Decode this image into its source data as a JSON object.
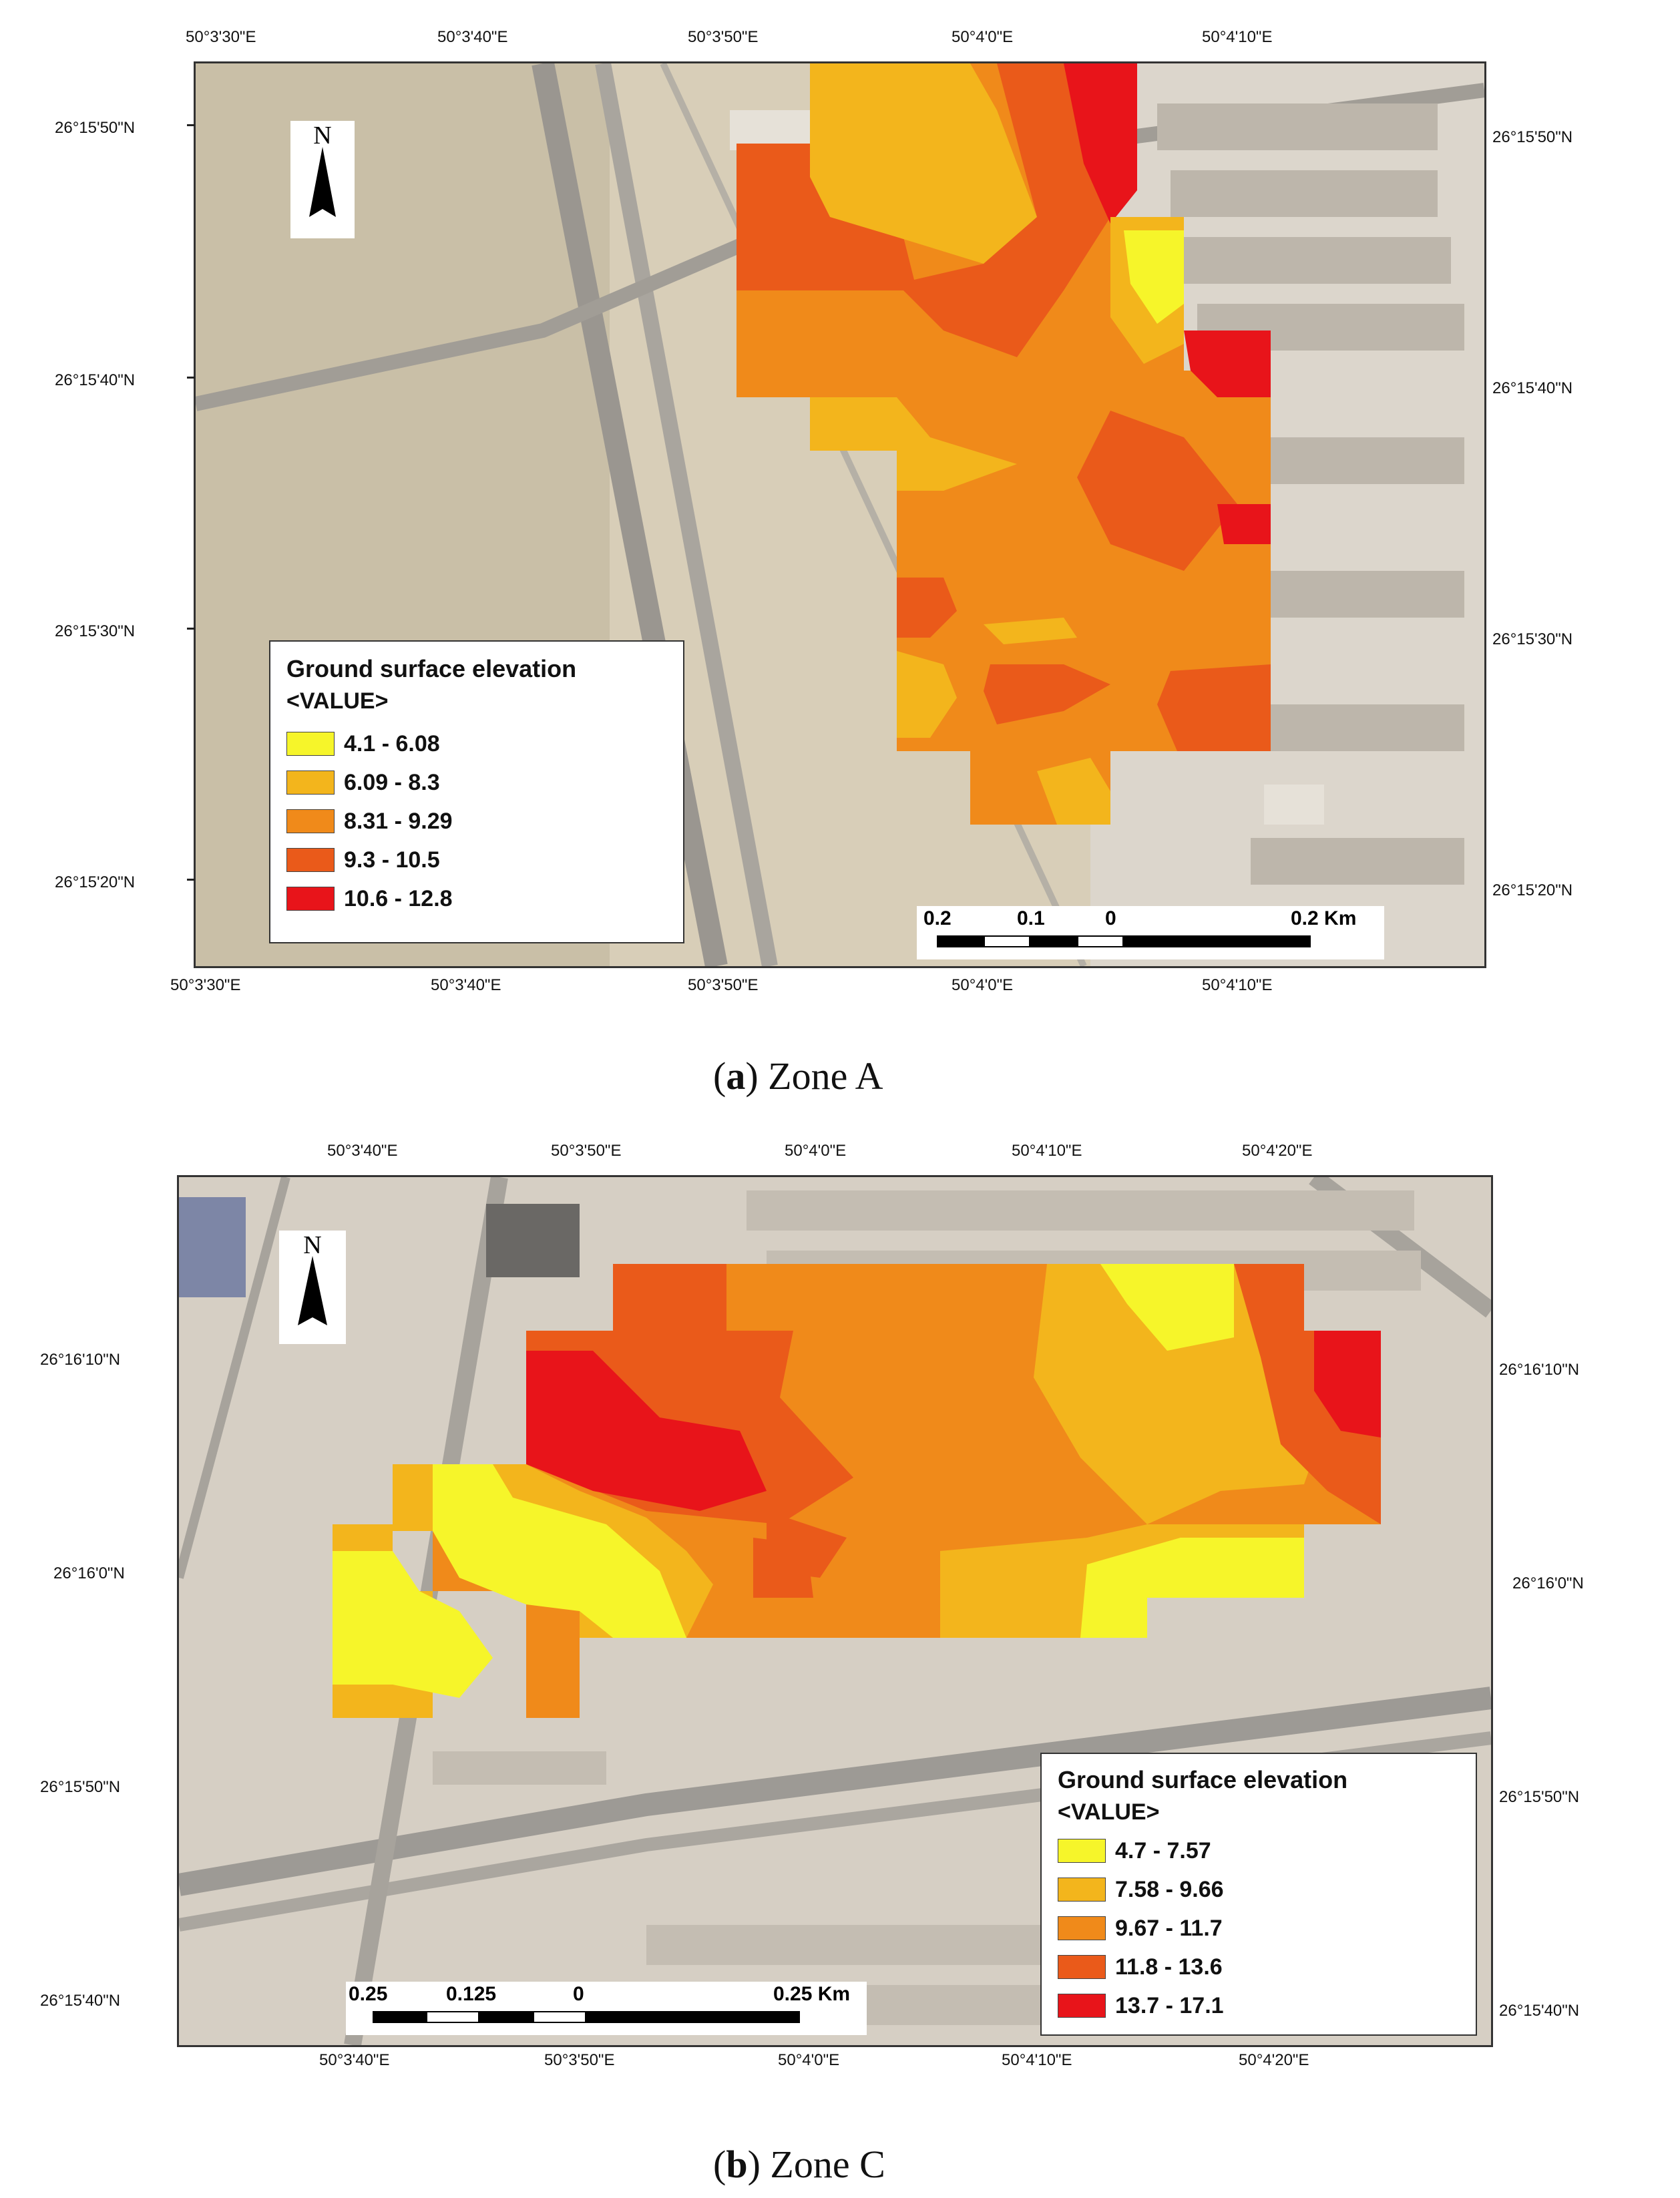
{
  "panel_a": {
    "caption_label": "a",
    "caption_text": "Zone A",
    "top_labels": [
      "50°3'30\"E",
      "50°3'40\"E",
      "50°3'50\"E",
      "50°4'0\"E",
      "50°4'10\"E"
    ],
    "bottom_labels": [
      "50°3'30\"E",
      "50°3'40\"E",
      "50°3'50\"E",
      "50°4'0\"E",
      "50°4'10\"E"
    ],
    "left_labels": [
      "26°15'50\"N",
      "26°15'40\"N",
      "26°15'30\"N",
      "26°15'20\"N"
    ],
    "right_labels": [
      "26°15'50\"N",
      "26°15'40\"N",
      "26°15'30\"N",
      "26°15'20\"N"
    ],
    "north": "N",
    "legend": {
      "title": "Ground surface elevation",
      "subtitle": "<VALUE>",
      "classes": [
        {
          "label": "4.1 - 6.08",
          "color": "#f6f52a"
        },
        {
          "label": "6.09 - 8.3",
          "color": "#f3b51c"
        },
        {
          "label": "8.31 - 9.29",
          "color": "#f08a1a"
        },
        {
          "label": "9.3 - 10.5",
          "color": "#ea5a1a"
        },
        {
          "label": "10.6 - 12.8",
          "color": "#e8141a"
        }
      ]
    },
    "scale": {
      "labels": [
        "0.2",
        "0.1",
        "0",
        "0.2 Km"
      ]
    }
  },
  "panel_b": {
    "caption_label": "b",
    "caption_text": "Zone C",
    "top_labels": [
      "50°3'40\"E",
      "50°3'50\"E",
      "50°4'0\"E",
      "50°4'10\"E",
      "50°4'20\"E"
    ],
    "bottom_labels": [
      "50°3'40\"E",
      "50°3'50\"E",
      "50°4'0\"E",
      "50°4'10\"E",
      "50°4'20\"E"
    ],
    "left_labels": [
      "26°16'10\"N",
      "26°16'0\"N",
      "26°15'50\"N",
      "26°15'40\"N"
    ],
    "right_labels": [
      "26°16'10\"N",
      "26°16'0\"N",
      "26°15'50\"N",
      "26°15'40\"N"
    ],
    "north": "N",
    "legend": {
      "title": "Ground surface elevation",
      "subtitle": "<VALUE>",
      "classes": [
        {
          "label": "4.7 - 7.57",
          "color": "#f6f52a"
        },
        {
          "label": "7.58 - 9.66",
          "color": "#f3b51c"
        },
        {
          "label": "9.67 - 11.7",
          "color": "#f08a1a"
        },
        {
          "label": "11.8 - 13.6",
          "color": "#ea5a1a"
        },
        {
          "label": "13.7 - 17.1",
          "color": "#e8141a"
        }
      ]
    },
    "scale": {
      "labels": [
        "0.25",
        "0.125",
        "0",
        "0.25 Km"
      ]
    }
  }
}
